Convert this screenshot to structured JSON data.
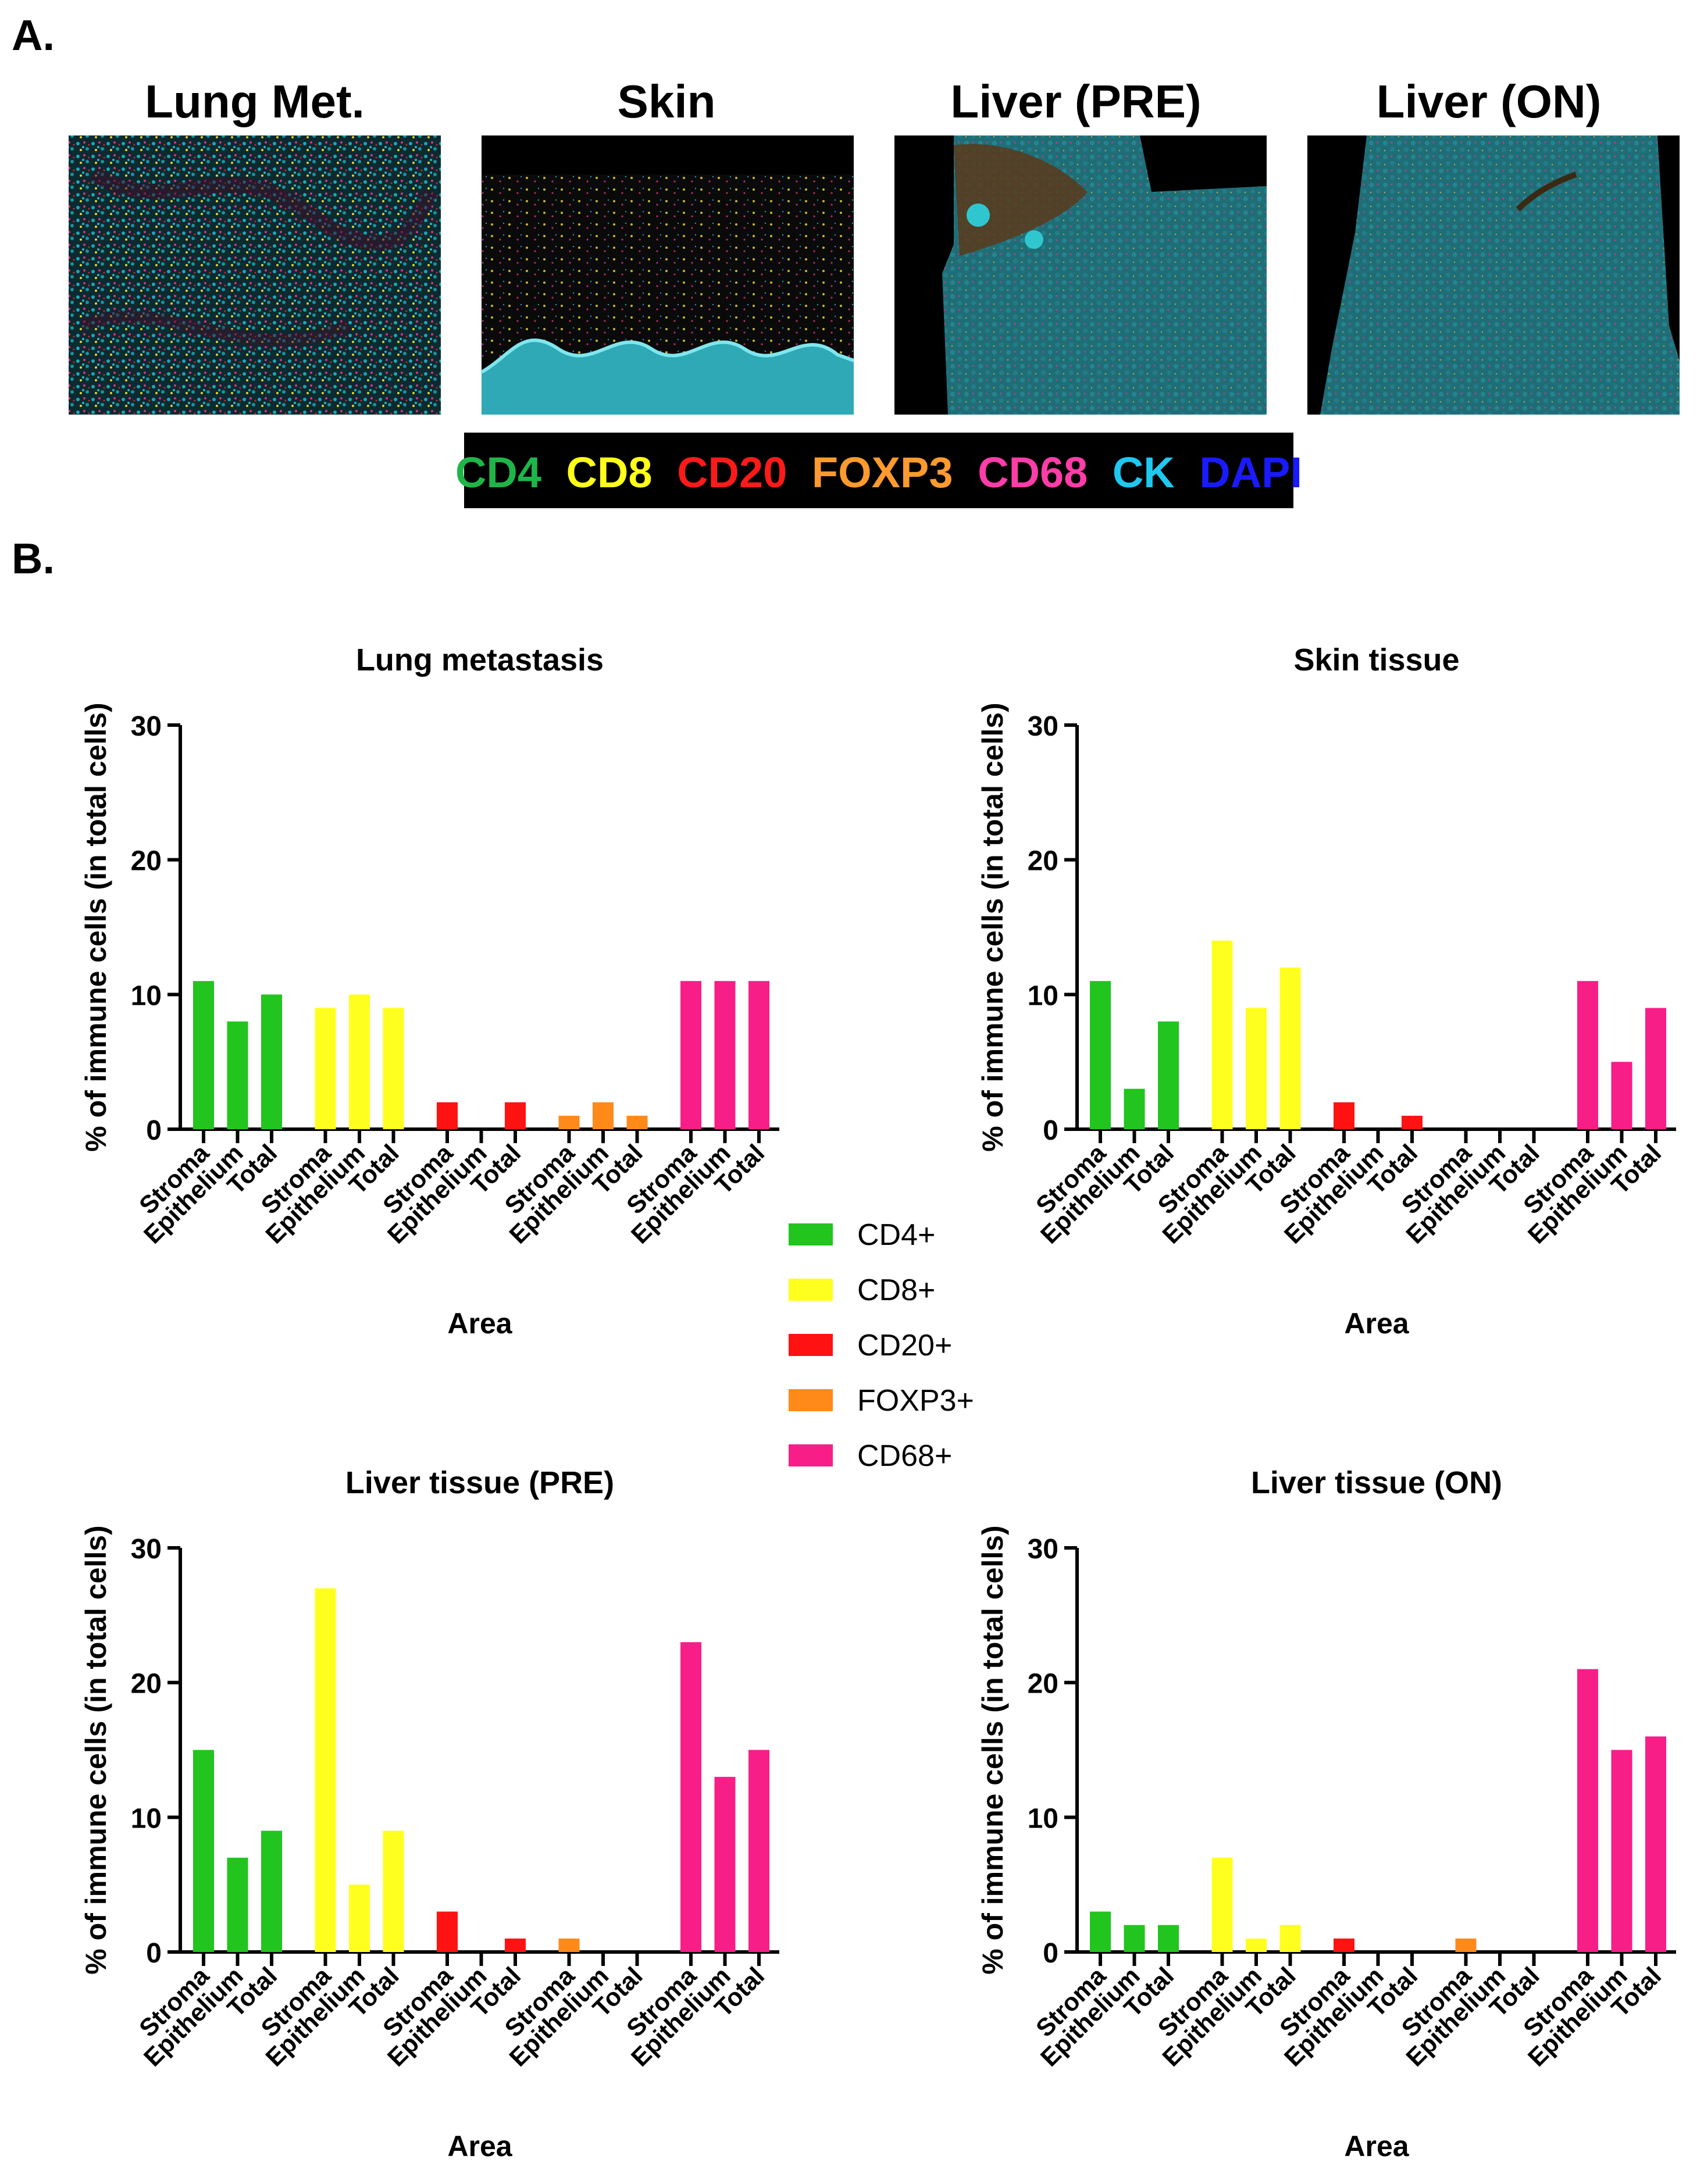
{
  "panel_labels": {
    "a": "A.",
    "b": "B."
  },
  "tissue_images": [
    {
      "title": "Lung Met."
    },
    {
      "title": "Skin"
    },
    {
      "title": "Liver (PRE)"
    },
    {
      "title": "Liver (ON)"
    }
  ],
  "marker_legend": [
    {
      "label": "CD4",
      "color": "#1fb548"
    },
    {
      "label": "CD8",
      "color": "#ffff1a"
    },
    {
      "label": "CD20",
      "color": "#ff1a1a"
    },
    {
      "label": "FOXP3",
      "color": "#ff9a2e"
    },
    {
      "label": "CD68",
      "color": "#ff3da8"
    },
    {
      "label": "CK",
      "color": "#1ec8f0"
    },
    {
      "label": "DAPI",
      "color": "#1a1aff"
    }
  ],
  "legend": [
    {
      "label": "CD4+",
      "color": "#22c41e"
    },
    {
      "label": "CD8+",
      "color": "#ffff1f"
    },
    {
      "label": "CD20+",
      "color": "#ff1212"
    },
    {
      "label": "FOXP3+",
      "color": "#ff8a1a"
    },
    {
      "label": "CD68+",
      "color": "#f71e88"
    }
  ],
  "chart_data": [
    {
      "type": "bar",
      "title": "Lung metastasis",
      "xlabel": "Area",
      "ylabel": "% of immune cells (in total cells)",
      "ylim": [
        0,
        30
      ],
      "yticks": [
        0,
        10,
        20,
        30
      ],
      "categories": [
        "Stroma",
        "Epithelium",
        "Total"
      ],
      "series": [
        {
          "name": "CD4+",
          "values": [
            11,
            8,
            10
          ]
        },
        {
          "name": "CD8+",
          "values": [
            9,
            10,
            9
          ]
        },
        {
          "name": "CD20+",
          "values": [
            2,
            0,
            2
          ]
        },
        {
          "name": "FOXP3+",
          "values": [
            1,
            2,
            1
          ]
        },
        {
          "name": "CD68+",
          "values": [
            11,
            11,
            11
          ]
        }
      ]
    },
    {
      "type": "bar",
      "title": "Skin tissue",
      "xlabel": "Area",
      "ylabel": "% of immune cells (in total cells)",
      "ylim": [
        0,
        30
      ],
      "yticks": [
        0,
        10,
        20,
        30
      ],
      "categories": [
        "Stroma",
        "Epithelium",
        "Total"
      ],
      "series": [
        {
          "name": "CD4+",
          "values": [
            11,
            3,
            8
          ]
        },
        {
          "name": "CD8+",
          "values": [
            14,
            9,
            12
          ]
        },
        {
          "name": "CD20+",
          "values": [
            2,
            0,
            1
          ]
        },
        {
          "name": "FOXP3+",
          "values": [
            0,
            0,
            0
          ]
        },
        {
          "name": "CD68+",
          "values": [
            11,
            5,
            9
          ]
        }
      ]
    },
    {
      "type": "bar",
      "title": "Liver tissue (PRE)",
      "xlabel": "Area",
      "ylabel": "% of immune cells (in total cells)",
      "ylim": [
        0,
        30
      ],
      "yticks": [
        0,
        10,
        20,
        30
      ],
      "categories": [
        "Stroma",
        "Epithelium",
        "Total"
      ],
      "series": [
        {
          "name": "CD4+",
          "values": [
            15,
            7,
            9
          ]
        },
        {
          "name": "CD8+",
          "values": [
            27,
            5,
            9
          ]
        },
        {
          "name": "CD20+",
          "values": [
            3,
            0,
            1
          ]
        },
        {
          "name": "FOXP3+",
          "values": [
            1,
            0,
            0
          ]
        },
        {
          "name": "CD68+",
          "values": [
            23,
            13,
            15
          ]
        }
      ]
    },
    {
      "type": "bar",
      "title": "Liver tissue (ON)",
      "xlabel": "Area",
      "ylabel": "% of immune cells (in total cells)",
      "ylim": [
        0,
        30
      ],
      "yticks": [
        0,
        10,
        20,
        30
      ],
      "categories": [
        "Stroma",
        "Epithelium",
        "Total"
      ],
      "series": [
        {
          "name": "CD4+",
          "values": [
            3,
            2,
            2
          ]
        },
        {
          "name": "CD8+",
          "values": [
            7,
            1,
            2
          ]
        },
        {
          "name": "CD20+",
          "values": [
            1,
            0,
            0
          ]
        },
        {
          "name": "FOXP3+",
          "values": [
            1,
            0,
            0
          ]
        },
        {
          "name": "CD68+",
          "values": [
            21,
            15,
            16
          ]
        }
      ]
    }
  ]
}
